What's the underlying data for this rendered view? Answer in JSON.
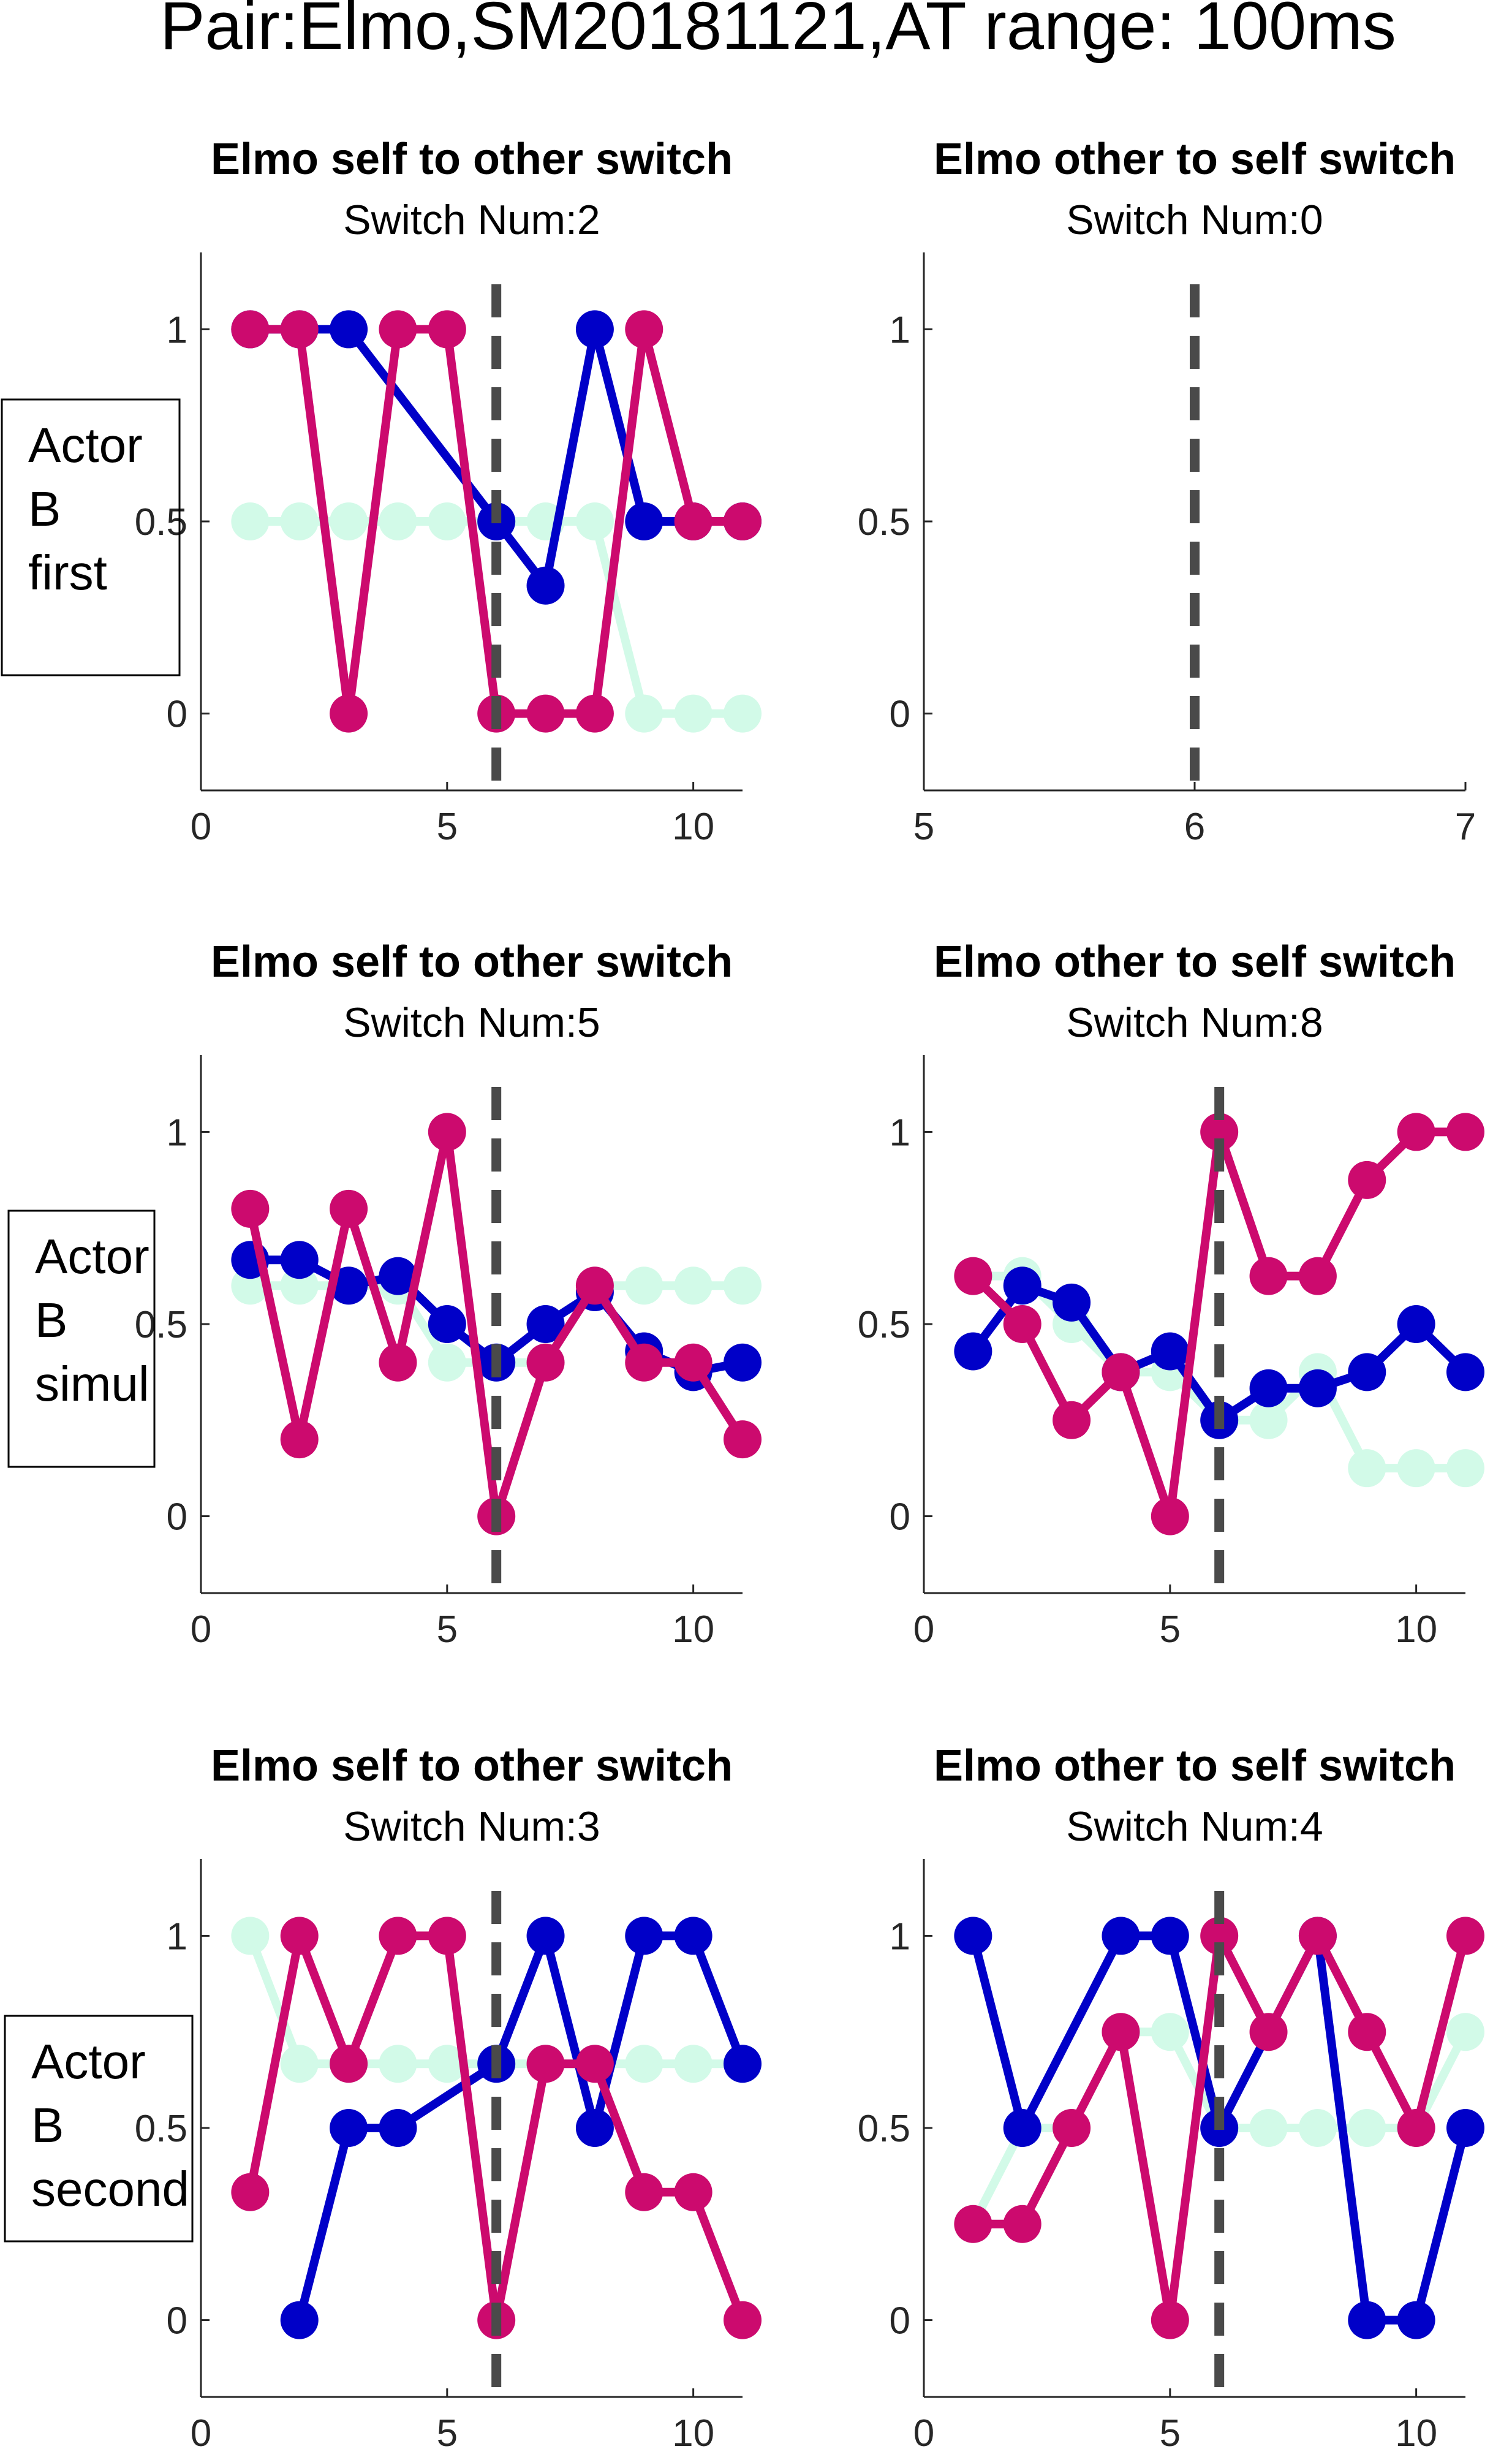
{
  "figure": {
    "title": "Pair:Elmo,SM20181121,AT range: 100ms"
  },
  "colors": {
    "blue": "#0000c8",
    "magenta": "#cc0a6e",
    "mint": "#d2fae8",
    "dashed_line": "#4a4a4a",
    "axis": "#262626"
  },
  "row_labels": [
    {
      "lines": [
        "Actor",
        "B",
        "first"
      ]
    },
    {
      "lines": [
        "Actor",
        "B",
        "simul"
      ]
    },
    {
      "lines": [
        "Actor",
        "B",
        "second"
      ]
    }
  ],
  "chart_data": [
    {
      "type": "line",
      "title": "Elmo self to other switch",
      "subtitle": "Switch Num:2",
      "xlim": [
        0,
        11
      ],
      "ylim": [
        -0.2,
        1.2
      ],
      "xticks": [
        0,
        5,
        10
      ],
      "yticks": [
        0,
        0.5,
        1
      ],
      "ytick_labels": [
        "0",
        "0.5",
        "1"
      ],
      "switch_x": 6,
      "series": [
        {
          "color_key": "mint",
          "points": [
            [
              1,
              0.5
            ],
            [
              2,
              0.5
            ],
            [
              3,
              0.5
            ],
            [
              4,
              0.5
            ],
            [
              5,
              0.5
            ],
            [
              6,
              0.5
            ],
            [
              7,
              0.5
            ],
            [
              8,
              0.5
            ],
            [
              9,
              0
            ],
            [
              10,
              0
            ],
            [
              11,
              0
            ]
          ]
        },
        {
          "color_key": "blue",
          "points": [
            [
              1,
              1
            ],
            [
              2,
              1
            ],
            [
              3,
              1
            ],
            [
              6,
              0.5
            ],
            [
              7,
              0.333
            ],
            [
              8,
              1
            ],
            [
              9,
              0.5
            ],
            [
              10,
              0.5
            ],
            [
              11,
              0.5
            ]
          ]
        },
        {
          "color_key": "magenta",
          "points": [
            [
              1,
              1
            ],
            [
              2,
              1
            ],
            [
              3,
              0
            ],
            [
              4,
              1
            ],
            [
              5,
              1
            ],
            [
              6,
              0
            ],
            [
              7,
              0
            ],
            [
              8,
              0
            ],
            [
              9,
              1
            ],
            [
              10,
              0.5
            ],
            [
              11,
              0.5
            ]
          ]
        }
      ]
    },
    {
      "type": "line",
      "title": "Elmo other to self switch",
      "subtitle": "Switch Num:0",
      "xlim": [
        5,
        7
      ],
      "ylim": [
        -0.2,
        1.2
      ],
      "xticks": [
        5,
        6,
        7
      ],
      "yticks": [
        0,
        0.5,
        1
      ],
      "ytick_labels": [
        "0",
        "0.5",
        "1"
      ],
      "switch_x": 6,
      "series": []
    },
    {
      "type": "line",
      "title": "Elmo self to other switch",
      "subtitle": "Switch Num:5",
      "xlim": [
        0,
        11
      ],
      "ylim": [
        -0.2,
        1.2
      ],
      "xticks": [
        0,
        5,
        10
      ],
      "yticks": [
        0,
        0.5,
        1
      ],
      "ytick_labels": [
        "0",
        "0.5",
        "1"
      ],
      "switch_x": 6,
      "series": [
        {
          "color_key": "mint",
          "points": [
            [
              1,
              0.6
            ],
            [
              2,
              0.6
            ],
            [
              3,
              0.6
            ],
            [
              4,
              0.6
            ],
            [
              5,
              0.4
            ],
            [
              6,
              0.4
            ],
            [
              7,
              0.4
            ],
            [
              8,
              0.6
            ],
            [
              9,
              0.6
            ],
            [
              10,
              0.6
            ],
            [
              11,
              0.6
            ]
          ]
        },
        {
          "color_key": "blue",
          "points": [
            [
              1,
              0.667
            ],
            [
              2,
              0.667
            ],
            [
              3,
              0.6
            ],
            [
              4,
              0.625
            ],
            [
              5,
              0.5
            ],
            [
              6,
              0.4
            ],
            [
              7,
              0.5
            ],
            [
              8,
              0.583
            ],
            [
              9,
              0.429
            ],
            [
              10,
              0.375
            ],
            [
              11,
              0.4
            ]
          ]
        },
        {
          "color_key": "magenta",
          "points": [
            [
              1,
              0.8
            ],
            [
              2,
              0.2
            ],
            [
              3,
              0.8
            ],
            [
              4,
              0.4
            ],
            [
              5,
              1
            ],
            [
              6,
              0
            ],
            [
              7,
              0.4
            ],
            [
              8,
              0.6
            ],
            [
              9,
              0.4
            ],
            [
              10,
              0.4
            ],
            [
              11,
              0.2
            ]
          ]
        }
      ]
    },
    {
      "type": "line",
      "title": "Elmo other to self switch",
      "subtitle": "Switch Num:8",
      "xlim": [
        0,
        11
      ],
      "ylim": [
        -0.2,
        1.2
      ],
      "xticks": [
        0,
        5,
        10
      ],
      "yticks": [
        0,
        0.5,
        1
      ],
      "ytick_labels": [
        "0",
        "0.5",
        "1"
      ],
      "switch_x": 6,
      "series": [
        {
          "color_key": "mint",
          "points": [
            [
              1,
              0.625
            ],
            [
              2,
              0.625
            ],
            [
              3,
              0.5
            ],
            [
              4,
              0.375
            ],
            [
              5,
              0.375
            ],
            [
              6,
              0.25
            ],
            [
              7,
              0.25
            ],
            [
              8,
              0.375
            ],
            [
              9,
              0.125
            ],
            [
              10,
              0.125
            ],
            [
              11,
              0.125
            ]
          ]
        },
        {
          "color_key": "blue",
          "points": [
            [
              1,
              0.429
            ],
            [
              2,
              0.6
            ],
            [
              3,
              0.556
            ],
            [
              4,
              0.375
            ],
            [
              5,
              0.429
            ],
            [
              6,
              0.25
            ],
            [
              7,
              0.333
            ],
            [
              8,
              0.333
            ],
            [
              9,
              0.375
            ],
            [
              10,
              0.5
            ],
            [
              11,
              0.375
            ]
          ]
        },
        {
          "color_key": "magenta",
          "points": [
            [
              1,
              0.625
            ],
            [
              2,
              0.5
            ],
            [
              3,
              0.25
            ],
            [
              4,
              0.375
            ],
            [
              5,
              0
            ],
            [
              6,
              1
            ],
            [
              7,
              0.625
            ],
            [
              8,
              0.625
            ],
            [
              9,
              0.875
            ],
            [
              10,
              1
            ],
            [
              11,
              1
            ]
          ]
        }
      ]
    },
    {
      "type": "line",
      "title": "Elmo self to other switch",
      "subtitle": "Switch Num:3",
      "xlim": [
        0,
        11
      ],
      "ylim": [
        -0.2,
        1.2
      ],
      "xticks": [
        0,
        5,
        10
      ],
      "yticks": [
        0,
        0.5,
        1
      ],
      "ytick_labels": [
        "0",
        "0.5",
        "1"
      ],
      "switch_x": 6,
      "series": [
        {
          "color_key": "mint",
          "points": [
            [
              1,
              1
            ],
            [
              2,
              0.667
            ],
            [
              3,
              0.667
            ],
            [
              4,
              0.667
            ],
            [
              5,
              0.667
            ],
            [
              6,
              0.667
            ],
            [
              7,
              0.667
            ],
            [
              8,
              0.667
            ],
            [
              9,
              0.667
            ],
            [
              10,
              0.667
            ],
            [
              11,
              0.667
            ]
          ]
        },
        {
          "color_key": "blue",
          "points": [
            [
              2,
              0
            ],
            [
              3,
              0.5
            ],
            [
              4,
              0.5
            ],
            [
              6,
              0.667
            ],
            [
              7,
              1
            ],
            [
              8,
              0.5
            ],
            [
              9,
              1
            ],
            [
              10,
              1
            ],
            [
              11,
              0.667
            ]
          ]
        },
        {
          "color_key": "magenta",
          "points": [
            [
              1,
              0.333
            ],
            [
              2,
              1
            ],
            [
              3,
              0.667
            ],
            [
              4,
              1
            ],
            [
              5,
              1
            ],
            [
              6,
              0
            ],
            [
              7,
              0.667
            ],
            [
              8,
              0.667
            ],
            [
              9,
              0.333
            ],
            [
              10,
              0.333
            ],
            [
              11,
              0
            ]
          ]
        }
      ]
    },
    {
      "type": "line",
      "title": "Elmo other to self switch",
      "subtitle": "Switch Num:4",
      "xlim": [
        0,
        11
      ],
      "ylim": [
        -0.2,
        1.2
      ],
      "xticks": [
        0,
        5,
        10
      ],
      "yticks": [
        0,
        0.5,
        1
      ],
      "ytick_labels": [
        "0",
        "0.5",
        "1"
      ],
      "switch_x": 6,
      "series": [
        {
          "color_key": "mint",
          "points": [
            [
              1,
              0.25
            ],
            [
              2,
              0.5
            ],
            [
              3,
              0.5
            ],
            [
              4,
              0.75
            ],
            [
              5,
              0.75
            ],
            [
              6,
              0.5
            ],
            [
              7,
              0.5
            ],
            [
              8,
              0.5
            ],
            [
              9,
              0.5
            ],
            [
              10,
              0.5
            ],
            [
              11,
              0.75
            ]
          ]
        },
        {
          "color_key": "blue",
          "points": [
            [
              1,
              1
            ],
            [
              2,
              0.5
            ],
            [
              4,
              1
            ],
            [
              5,
              1
            ],
            [
              6,
              0.5
            ],
            [
              8,
              1
            ],
            [
              9,
              0
            ],
            [
              10,
              0
            ],
            [
              11,
              0.5
            ]
          ]
        },
        {
          "color_key": "magenta",
          "points": [
            [
              1,
              0.25
            ],
            [
              2,
              0.25
            ],
            [
              3,
              0.5
            ],
            [
              4,
              0.75
            ],
            [
              5,
              0
            ],
            [
              6,
              1
            ],
            [
              7,
              0.75
            ],
            [
              8,
              1
            ],
            [
              9,
              0.75
            ],
            [
              10,
              0.5
            ],
            [
              11,
              1
            ]
          ]
        }
      ]
    }
  ]
}
